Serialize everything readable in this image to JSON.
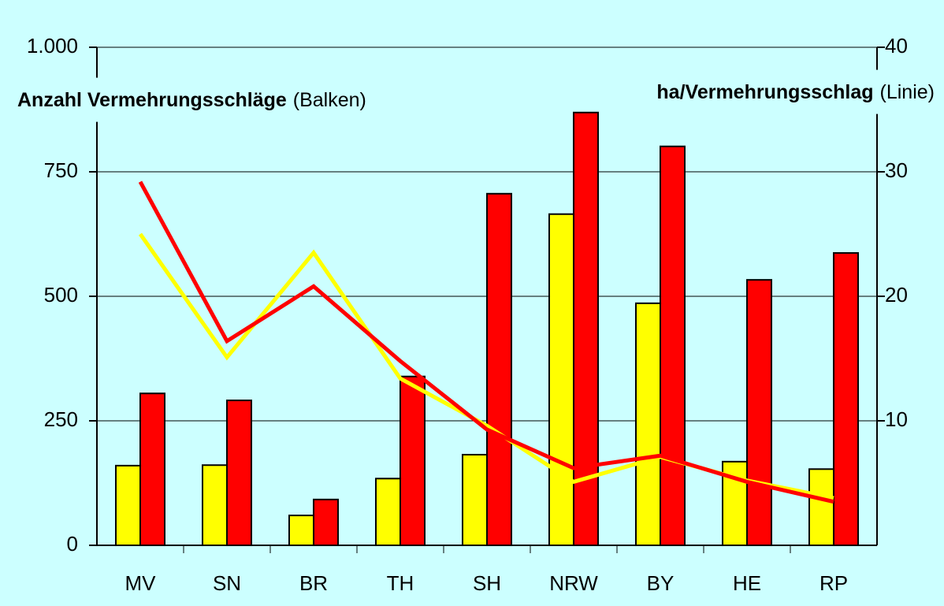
{
  "chart_data": {
    "type": "bar",
    "ylabel": "Anzahl Vermehrungsschläge",
    "ylabel_note": "(Balken)",
    "y2label": "ha/Vermehrungsschlag",
    "y2label_note": "(Linie)",
    "categories": [
      "MV",
      "SN",
      "BR",
      "TH",
      "SH",
      "NRW",
      "BY",
      "HE",
      "RP"
    ],
    "series": [
      {
        "type": "bar",
        "color": "#ffff00",
        "values": [
          160,
          161,
          60,
          134,
          182,
          665,
          486,
          168,
          153
        ]
      },
      {
        "type": "bar",
        "color": "#ff0000",
        "values": [
          305,
          291,
          92,
          339,
          706,
          869,
          801,
          533,
          587
        ]
      },
      {
        "type": "line",
        "axis": "y2",
        "color": "#ffff00",
        "values": [
          25.0,
          15.1,
          23.5,
          13.4,
          9.6,
          5.1,
          7.1,
          5.2,
          3.8
        ]
      },
      {
        "type": "line",
        "axis": "y2",
        "color": "#ff0000",
        "values": [
          29.2,
          16.4,
          20.8,
          14.8,
          9.3,
          6.2,
          7.2,
          5.1,
          3.5
        ]
      }
    ],
    "ylim": [
      0,
      1000
    ],
    "yticks": [
      0,
      250,
      500,
      750,
      {
        "value": 1000,
        "label": "1.000"
      }
    ],
    "y2lim": [
      0,
      40
    ],
    "y2ticks": [
      10,
      20,
      30,
      40
    ],
    "grid": true
  }
}
